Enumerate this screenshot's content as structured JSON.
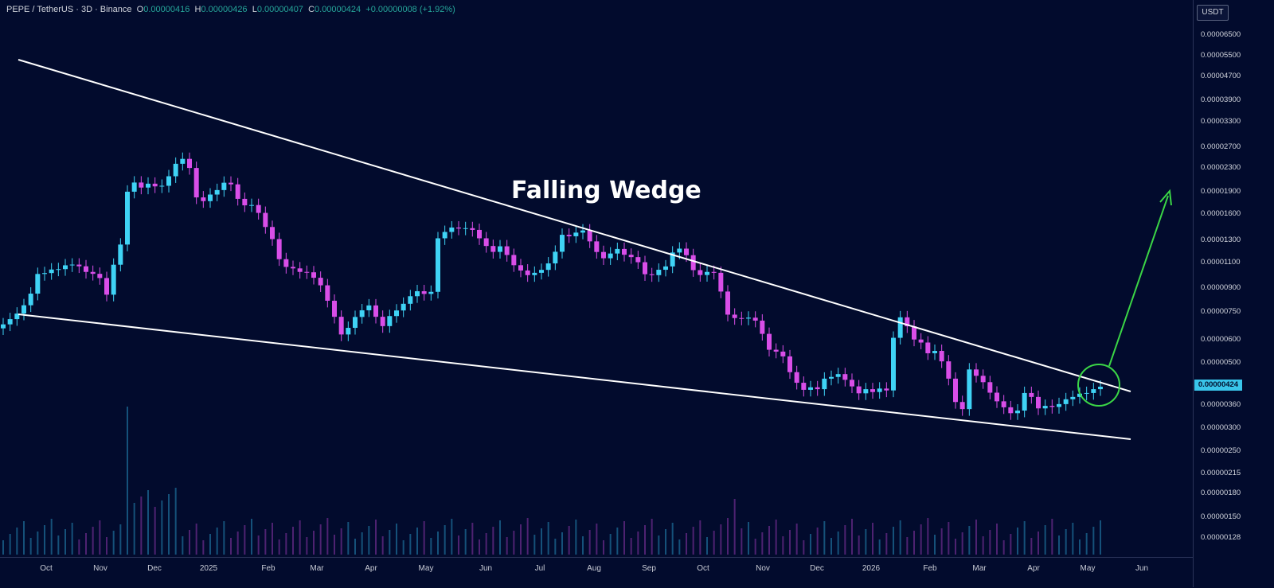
{
  "legend": {
    "symbol": "PEPE / TetherUS · 3D · Binance",
    "o_label": "O",
    "o_value": "0.00000416",
    "h_label": "H",
    "h_value": "0.00000426",
    "l_label": "L",
    "l_value": "0.00000407",
    "c_label": "C",
    "c_value": "0.00000424",
    "change": "+0.00000008 (+1.92%)"
  },
  "currency": "USDT",
  "current_price_label": "0.00000424",
  "colors": {
    "background": "#020b2d",
    "up": "#3fd3f5",
    "down": "#d94ee8",
    "trendline": "#ffffff",
    "arrow": "#3bd646"
  },
  "chart_data": {
    "type": "candlestick",
    "title": "Falling Wedge",
    "y_scale": "log",
    "ylim": [
      1.12e-06,
      7.2e-06
    ],
    "y_ticks": [
      "0.00006500",
      "0.00005500",
      "0.00004700",
      "0.00003900",
      "0.00003300",
      "0.00002700",
      "0.00002300",
      "0.00001900",
      "0.00001600",
      "0.00001300",
      "0.00001100",
      "0.00000900",
      "0.00000750",
      "0.00000600",
      "0.00000500",
      "0.00000424",
      "0.00000360",
      "0.00000300",
      "0.00000250",
      "0.00000215",
      "0.00000180",
      "0.00000150",
      "0.00000128"
    ],
    "x_ticks": [
      "Oct",
      "Nov",
      "Dec",
      "2025",
      "Feb",
      "Mar",
      "Apr",
      "May",
      "Jun",
      "Jul",
      "Aug",
      "Sep",
      "Oct",
      "Nov",
      "Dec",
      "2026",
      "Feb",
      "Mar",
      "Apr",
      "May",
      "Jun"
    ],
    "candles_close": [
      6.84e-06,
      7.12e-06,
      7.43e-06,
      7.92e-06,
      8.66e-06,
      1.007e-05,
      1.014e-05,
      1.042e-05,
      1.045e-05,
      1.076e-05,
      1.082e-05,
      1.068e-05,
      1.023e-05,
      1.008e-05,
      9.76e-06,
      8.59e-06,
      1.081e-05,
      1.262e-05,
      1.893e-05,
      2.031e-05,
      1.954e-05,
      2.013e-05,
      1.972e-05,
      1.981e-05,
      2.131e-05,
      2.345e-05,
      2.435e-05,
      2.271e-05,
      1.812e-05,
      1.761e-05,
      1.852e-05,
      1.917e-05,
      2.028e-05,
      2.003e-05,
      1.792e-05,
      1.705e-05,
      1.709e-05,
      1.609e-05,
      1.444e-05,
      1.316e-05,
      1.128e-05,
      1.063e-05,
      1.051e-05,
      1.023e-05,
      1.02e-05,
      9.78e-06,
      9.23e-06,
      8.2e-06,
      7.25e-06,
      6.33e-06,
      6.66e-06,
      7.24e-06,
      7.62e-06,
      7.91e-06,
      7.25e-06,
      6.75e-06,
      7.29e-06,
      7.61e-06,
      8.01e-06,
      8.49e-06,
      8.82e-06,
      8.64e-06,
      8.78e-06,
      1.324e-05,
      1.39e-05,
      1.438e-05,
      1.427e-05,
      1.431e-05,
      1.412e-05,
      1.324e-05,
      1.248e-05,
      1.193e-05,
      1.245e-05,
      1.165e-05,
      1.077e-05,
      1.034e-05,
      9.98e-06,
      1.016e-05,
      1.039e-05,
      1.092e-05,
      1.194e-05,
      1.36e-05,
      1.345e-05,
      1.383e-05,
      1.406e-05,
      1.293e-05,
      1.192e-05,
      1.136e-05,
      1.178e-05,
      1.22e-05,
      1.167e-05,
      1.146e-05,
      1.102e-05,
      1.005e-05,
      9.98e-06,
      1.04e-05,
      1.067e-05,
      1.187e-05,
      1.223e-05,
      1.163e-05,
      1.037e-05,
      9.99e-06,
      1.023e-05,
      1.016e-05,
      8.8e-06,
      7.37e-06,
      7.18e-06,
      7.15e-06,
      7.2e-06,
      7.04e-06,
      6.36e-06,
      5.63e-06,
      5.55e-06,
      5.35e-06,
      4.74e-06,
      4.37e-06,
      4.14e-06,
      4.22e-06,
      4.16e-06,
      4.51e-06,
      4.57e-06,
      4.67e-06,
      4.47e-06,
      4.25e-06,
      4.03e-06,
      4.16e-06,
      4.07e-06,
      4.18e-06,
      4.12e-06,
      6.17e-06,
      7.22e-06,
      6.74e-06,
      6.09e-06,
      5.95e-06,
      5.48e-06,
      5.58e-06,
      5.15e-06,
      4.51e-06,
      3.77e-06,
      3.57e-06,
      4.84e-06,
      4.61e-06,
      4.39e-06,
      4.05e-06,
      3.79e-06,
      3.62e-06,
      3.46e-06,
      3.53e-06,
      4.04e-06,
      3.92e-06,
      3.59e-06,
      3.66e-06,
      3.63e-06,
      3.71e-06,
      3.85e-06,
      3.92e-06,
      4.02e-06,
      4.04e-06,
      4.16e-06,
      4.24e-06
    ],
    "upper_trendline": {
      "label": "",
      "from": [
        5.7e-06,
        4.9e-05
      ],
      "to": [
        4e-06,
        4e-06
      ]
    },
    "lower_trendline": {
      "label": "",
      "from": [
        7.3e-06,
        7.3e-06
      ],
      "to": [
        2.65e-06,
        2.65e-06
      ]
    }
  }
}
